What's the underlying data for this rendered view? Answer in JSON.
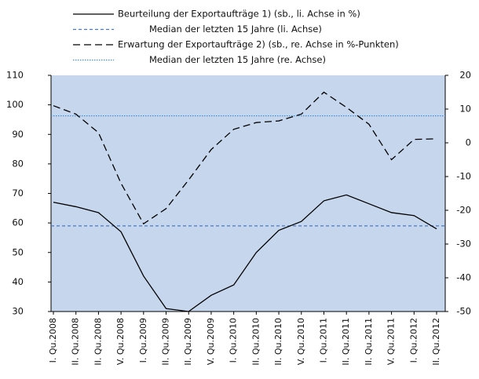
{
  "chart_data": {
    "type": "line",
    "categories": [
      "I. Qu.2008",
      "II. Qu.2008",
      "II. Qu.2008",
      "V. Qu.2008",
      "I. Qu.2009",
      "II. Qu.2009",
      "II. Qu.2009",
      "V. Qu.2009",
      "I. Qu.2010",
      "II. Qu.2010",
      "II. Qu.2010",
      "V. Qu.2010",
      "I. Qu.2011",
      "II. Qu.2011",
      "II. Qu.2011",
      "V. Qu.2011",
      "I. Qu.2012",
      "II. Qu.2012"
    ],
    "series": [
      {
        "name": "Beurteilung der Exportaufträge 1) (sb., li. Achse in %)",
        "color": "#000000",
        "style": "solid",
        "axis": "y",
        "values": [
          67,
          65.5,
          63.5,
          57,
          42,
          31,
          30,
          35.5,
          39,
          50,
          57.5,
          60.5,
          67.5,
          69.5,
          66.5,
          63.5,
          62.5,
          58
        ]
      },
      {
        "name": "Erwartung der Exportaufträge 2) (sb., re. Achse in %-Punkten)",
        "color": "#000000",
        "style": "dashed",
        "axis": "y2",
        "values": [
          11,
          8.5,
          3,
          -12,
          -24,
          -19.5,
          -11,
          -2,
          4,
          6,
          6.5,
          8.5,
          15,
          10.5,
          5.5,
          -5,
          1,
          1.2
        ]
      }
    ],
    "reference_lines": [
      {
        "name": "Median der letzten 15 Jahre (li. Achse)",
        "value": 59,
        "axis": "y",
        "color": "#4a78c8",
        "style": "dashed"
      },
      {
        "name": "Median der letzten 15 Jahre (re. Achse)",
        "value": 8,
        "axis": "y2",
        "color": "#3d8fd6",
        "style": "dotted"
      }
    ],
    "ylim": [
      30,
      110
    ],
    "yticks": [
      30,
      40,
      50,
      60,
      70,
      80,
      90,
      100,
      110
    ],
    "y2lim": [
      -50,
      20
    ],
    "y2ticks": [
      -50,
      -40,
      -30,
      -20,
      -10,
      0,
      10,
      20
    ],
    "plot_background": "#c6d7ed"
  }
}
